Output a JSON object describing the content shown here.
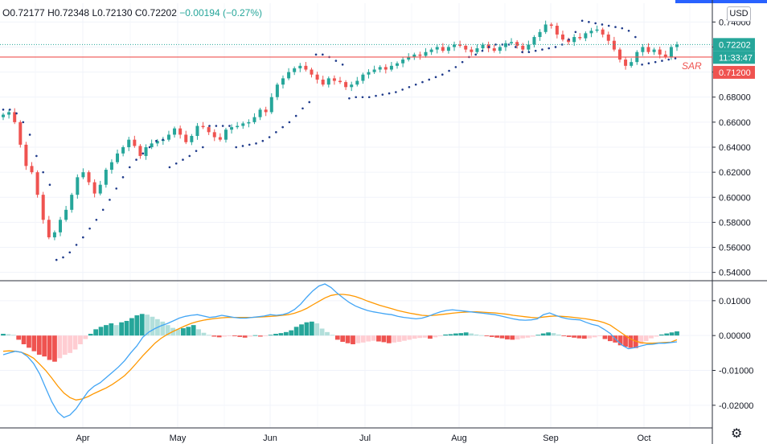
{
  "header": {
    "open": "O0.72177",
    "high": "H0.72348",
    "low": "L0.72130",
    "close": "C0.72202",
    "change": "−0.00194 (−0.27%)",
    "currency_button": "USD"
  },
  "colors": {
    "up": "#26a69a",
    "down": "#ef5350",
    "sar": "#1e3a8a",
    "macd_line": "#42a5f5",
    "signal_line": "#ff9800",
    "hist_up_strong": "#26a69a",
    "hist_up_weak": "#b2dfdb",
    "hist_down_strong": "#ef5350",
    "hist_down_weak": "#ffcdd2",
    "horizontal_line": "#ef5350",
    "last_price_line": "#26a69a"
  },
  "icons": {
    "settings": "gear-icon"
  },
  "chart_data": [
    {
      "type": "candlestick",
      "price_axis": {
        "ticks": [
          "0.74000",
          "0.72000",
          "0.70000",
          "0.68000",
          "0.66000",
          "0.64000",
          "0.62000",
          "0.60000",
          "0.58000",
          "0.56000",
          "0.54000"
        ],
        "ylim": [
          0.534,
          0.755
        ]
      },
      "x_labels": [
        "Apr",
        "May",
        "Jun",
        "Jul",
        "Aug",
        "Sep",
        "Oct"
      ],
      "price_tags": {
        "last_price": "0.72202",
        "countdown": "11:33:47",
        "sar_label": "SAR",
        "sar_value": "0.71200"
      },
      "horizontal_line": 0.712,
      "last_close": 0.72202,
      "close": [
        0.666,
        0.668,
        0.66,
        0.642,
        0.625,
        0.62,
        0.602,
        0.582,
        0.568,
        0.572,
        0.582,
        0.59,
        0.602,
        0.616,
        0.62,
        0.612,
        0.603,
        0.61,
        0.622,
        0.628,
        0.635,
        0.64,
        0.646,
        0.641,
        0.633,
        0.64,
        0.643,
        0.645,
        0.646,
        0.65,
        0.655,
        0.65,
        0.644,
        0.649,
        0.657,
        0.656,
        0.652,
        0.648,
        0.646,
        0.654,
        0.656,
        0.657,
        0.659,
        0.66,
        0.664,
        0.67,
        0.668,
        0.68,
        0.69,
        0.695,
        0.7,
        0.703,
        0.705,
        0.702,
        0.698,
        0.694,
        0.69,
        0.695,
        0.693,
        0.692,
        0.688,
        0.69,
        0.693,
        0.698,
        0.7,
        0.702,
        0.704,
        0.702,
        0.705,
        0.707,
        0.71,
        0.712,
        0.714,
        0.713,
        0.716,
        0.718,
        0.72,
        0.717,
        0.72,
        0.722,
        0.721,
        0.718,
        0.716,
        0.719,
        0.722,
        0.719,
        0.717,
        0.72,
        0.723,
        0.724,
        0.721,
        0.718,
        0.722,
        0.728,
        0.732,
        0.738,
        0.737,
        0.73,
        0.726,
        0.724,
        0.728,
        0.727,
        0.731,
        0.733,
        0.734,
        0.73,
        0.725,
        0.718,
        0.71,
        0.705,
        0.708,
        0.716,
        0.72,
        0.716,
        0.718,
        0.714,
        0.712,
        0.72,
        0.722
      ],
      "sar": [
        0.67,
        0.67,
        0.667,
        0.66,
        0.65,
        0.633,
        0.62,
        0.61,
        0.55,
        0.552,
        0.556,
        0.562,
        0.568,
        0.575,
        0.582,
        0.59,
        0.598,
        0.607,
        0.616,
        0.624,
        0.63,
        0.635,
        0.64,
        0.645,
        0.646,
        0.624,
        0.627,
        0.63,
        0.633,
        0.637,
        0.64,
        0.657,
        0.657,
        0.657,
        0.657,
        0.64,
        0.641,
        0.642,
        0.643,
        0.645,
        0.648,
        0.652,
        0.656,
        0.66,
        0.665,
        0.671,
        0.676,
        0.714,
        0.714,
        0.712,
        0.709,
        0.706,
        0.679,
        0.68,
        0.68,
        0.68,
        0.681,
        0.682,
        0.683,
        0.684,
        0.686,
        0.688,
        0.69,
        0.692,
        0.694,
        0.696,
        0.698,
        0.701,
        0.704,
        0.708,
        0.712,
        0.714,
        0.717,
        0.72,
        0.722,
        0.722,
        0.722,
        0.72,
        0.716,
        0.716,
        0.717,
        0.718,
        0.719,
        0.72,
        0.722,
        0.726,
        0.732,
        0.741,
        0.74,
        0.739,
        0.738,
        0.737,
        0.736,
        0.735,
        0.733,
        0.728,
        0.706,
        0.707,
        0.708,
        0.709,
        0.71,
        0.711
      ]
    },
    {
      "type": "histogram_with_lines",
      "ticks": [
        "0.01000",
        "0.00000",
        "-0.01000",
        "-0.02000"
      ],
      "ylim": [
        -0.0265,
        0.0155
      ],
      "histogram": [
        0.0005,
        0.0004,
        0.0002,
        -0.0012,
        -0.0025,
        -0.0035,
        -0.0045,
        -0.0055,
        -0.006,
        -0.007,
        -0.0075,
        -0.0065,
        -0.0055,
        -0.005,
        -0.004,
        -0.0025,
        -0.001,
        0.0005,
        0.0018,
        0.0025,
        0.003,
        0.0035,
        0.003,
        0.0038,
        0.0042,
        0.005,
        0.0058,
        0.0062,
        0.006,
        0.0054,
        0.0047,
        0.004,
        0.003,
        0.0022,
        0.0018,
        0.0021,
        0.0025,
        0.003,
        0.0018,
        0.0008,
        0.0002,
        -0.0003,
        -0.0005,
        -0.0003,
        -0.0001,
        -0.0002,
        -0.0004,
        -0.0006,
        -0.0003,
        0.0001,
        -0.0003,
        -0.0002,
        0.0002,
        0.0005,
        0.0007,
        0.001,
        0.0015,
        0.0025,
        0.0032,
        0.0038,
        0.004,
        0.0035,
        0.002,
        0.001,
        0.0002,
        -0.0012,
        -0.0018,
        -0.0022,
        -0.0025,
        -0.0022,
        -0.002,
        -0.0017,
        -0.0015,
        -0.0017,
        -0.0019,
        -0.0022,
        -0.002,
        -0.0018,
        -0.0015,
        -0.0012,
        -0.0009,
        -0.0007,
        -0.0006,
        -0.0009,
        -0.0005,
        -0.0002,
        0.0003,
        0.0004,
        0.0006,
        0.0007,
        0.0009,
        0.0006,
        0.0003,
        0.0001,
        -0.0002,
        -0.0004,
        -0.0006,
        -0.0008,
        -0.0011,
        -0.0012,
        -0.0011,
        -0.0008,
        -0.0006,
        -0.0003,
        0.0002,
        0.0006,
        0.0009,
        0.0007,
        0.0003,
        -0.0002,
        -0.0004,
        -0.0006,
        -0.0008,
        -0.0009,
        -0.0008,
        -0.0005,
        -0.0002,
        -0.001,
        -0.0016,
        -0.002,
        -0.0028,
        -0.0032,
        -0.0035,
        -0.0036,
        -0.0025,
        -0.0016,
        -0.0008,
        -0.0003,
        0.0003,
        0.0006,
        0.0009,
        0.0012
      ],
      "macd": [
        -0.0055,
        -0.005,
        -0.0045,
        -0.0048,
        -0.006,
        -0.008,
        -0.011,
        -0.015,
        -0.019,
        -0.022,
        -0.0235,
        -0.0228,
        -0.021,
        -0.0185,
        -0.016,
        -0.0145,
        -0.0135,
        -0.012,
        -0.0105,
        -0.009,
        -0.0072,
        -0.005,
        -0.003,
        -0.0005,
        0.001,
        0.002,
        0.0028,
        0.0034,
        0.0042,
        0.005,
        0.0055,
        0.0058,
        0.006,
        0.0056,
        0.0052,
        0.0054,
        0.0058,
        0.0055,
        0.0052,
        0.005,
        0.005,
        0.0052,
        0.0054,
        0.0056,
        0.006,
        0.0058,
        0.006,
        0.0065,
        0.0075,
        0.009,
        0.011,
        0.0128,
        0.0142,
        0.0148,
        0.0138,
        0.0122,
        0.0108,
        0.0095,
        0.0085,
        0.0078,
        0.0072,
        0.0068,
        0.0065,
        0.0062,
        0.006,
        0.0055,
        0.0052,
        0.005,
        0.0048,
        0.005,
        0.0055,
        0.0062,
        0.0068,
        0.0072,
        0.0074,
        0.0072,
        0.007,
        0.0068,
        0.0066,
        0.0064,
        0.0062,
        0.006,
        0.0056,
        0.0052,
        0.0048,
        0.0045,
        0.0044,
        0.0045,
        0.0048,
        0.006,
        0.0065,
        0.0058,
        0.0052,
        0.0048,
        0.0046,
        0.0045,
        0.0038,
        0.0032,
        0.0028,
        0.0018,
        0.0006,
        -0.0012,
        -0.0028,
        -0.0038,
        -0.0035,
        -0.003,
        -0.0026,
        -0.0025,
        -0.0022,
        -0.0022,
        -0.002,
        -0.0018
      ],
      "signal": [
        -0.0045,
        -0.0044,
        -0.0045,
        -0.0048,
        -0.0055,
        -0.0065,
        -0.0082,
        -0.01,
        -0.0122,
        -0.0145,
        -0.0165,
        -0.0178,
        -0.0185,
        -0.0182,
        -0.0175,
        -0.0166,
        -0.0158,
        -0.015,
        -0.014,
        -0.0128,
        -0.0115,
        -0.0098,
        -0.0078,
        -0.0058,
        -0.004,
        -0.0022,
        -0.0008,
        0.0003,
        0.0012,
        0.002,
        0.0028,
        0.0035,
        0.004,
        0.0044,
        0.0047,
        0.0049,
        0.0051,
        0.0052,
        0.0052,
        0.0052,
        0.0052,
        0.0052,
        0.0053,
        0.0054,
        0.0055,
        0.0056,
        0.0058,
        0.006,
        0.0064,
        0.007,
        0.0078,
        0.0088,
        0.0098,
        0.0108,
        0.0115,
        0.0118,
        0.0118,
        0.0116,
        0.0112,
        0.0106,
        0.0099,
        0.0093,
        0.0087,
        0.0082,
        0.0077,
        0.0072,
        0.0068,
        0.0064,
        0.0061,
        0.0058,
        0.0057,
        0.0058,
        0.006,
        0.0062,
        0.0064,
        0.0066,
        0.0067,
        0.0068,
        0.0068,
        0.0067,
        0.0066,
        0.0065,
        0.0063,
        0.0061,
        0.0058,
        0.0056,
        0.0054,
        0.0052,
        0.0051,
        0.0053,
        0.0055,
        0.0056,
        0.0055,
        0.0054,
        0.0052,
        0.005,
        0.0048,
        0.0045,
        0.0042,
        0.0037,
        0.003,
        0.0018,
        0.0006,
        -0.0006,
        -0.0015,
        -0.002,
        -0.0022,
        -0.0022,
        -0.0021,
        -0.002,
        -0.0019,
        -0.0012
      ]
    }
  ]
}
